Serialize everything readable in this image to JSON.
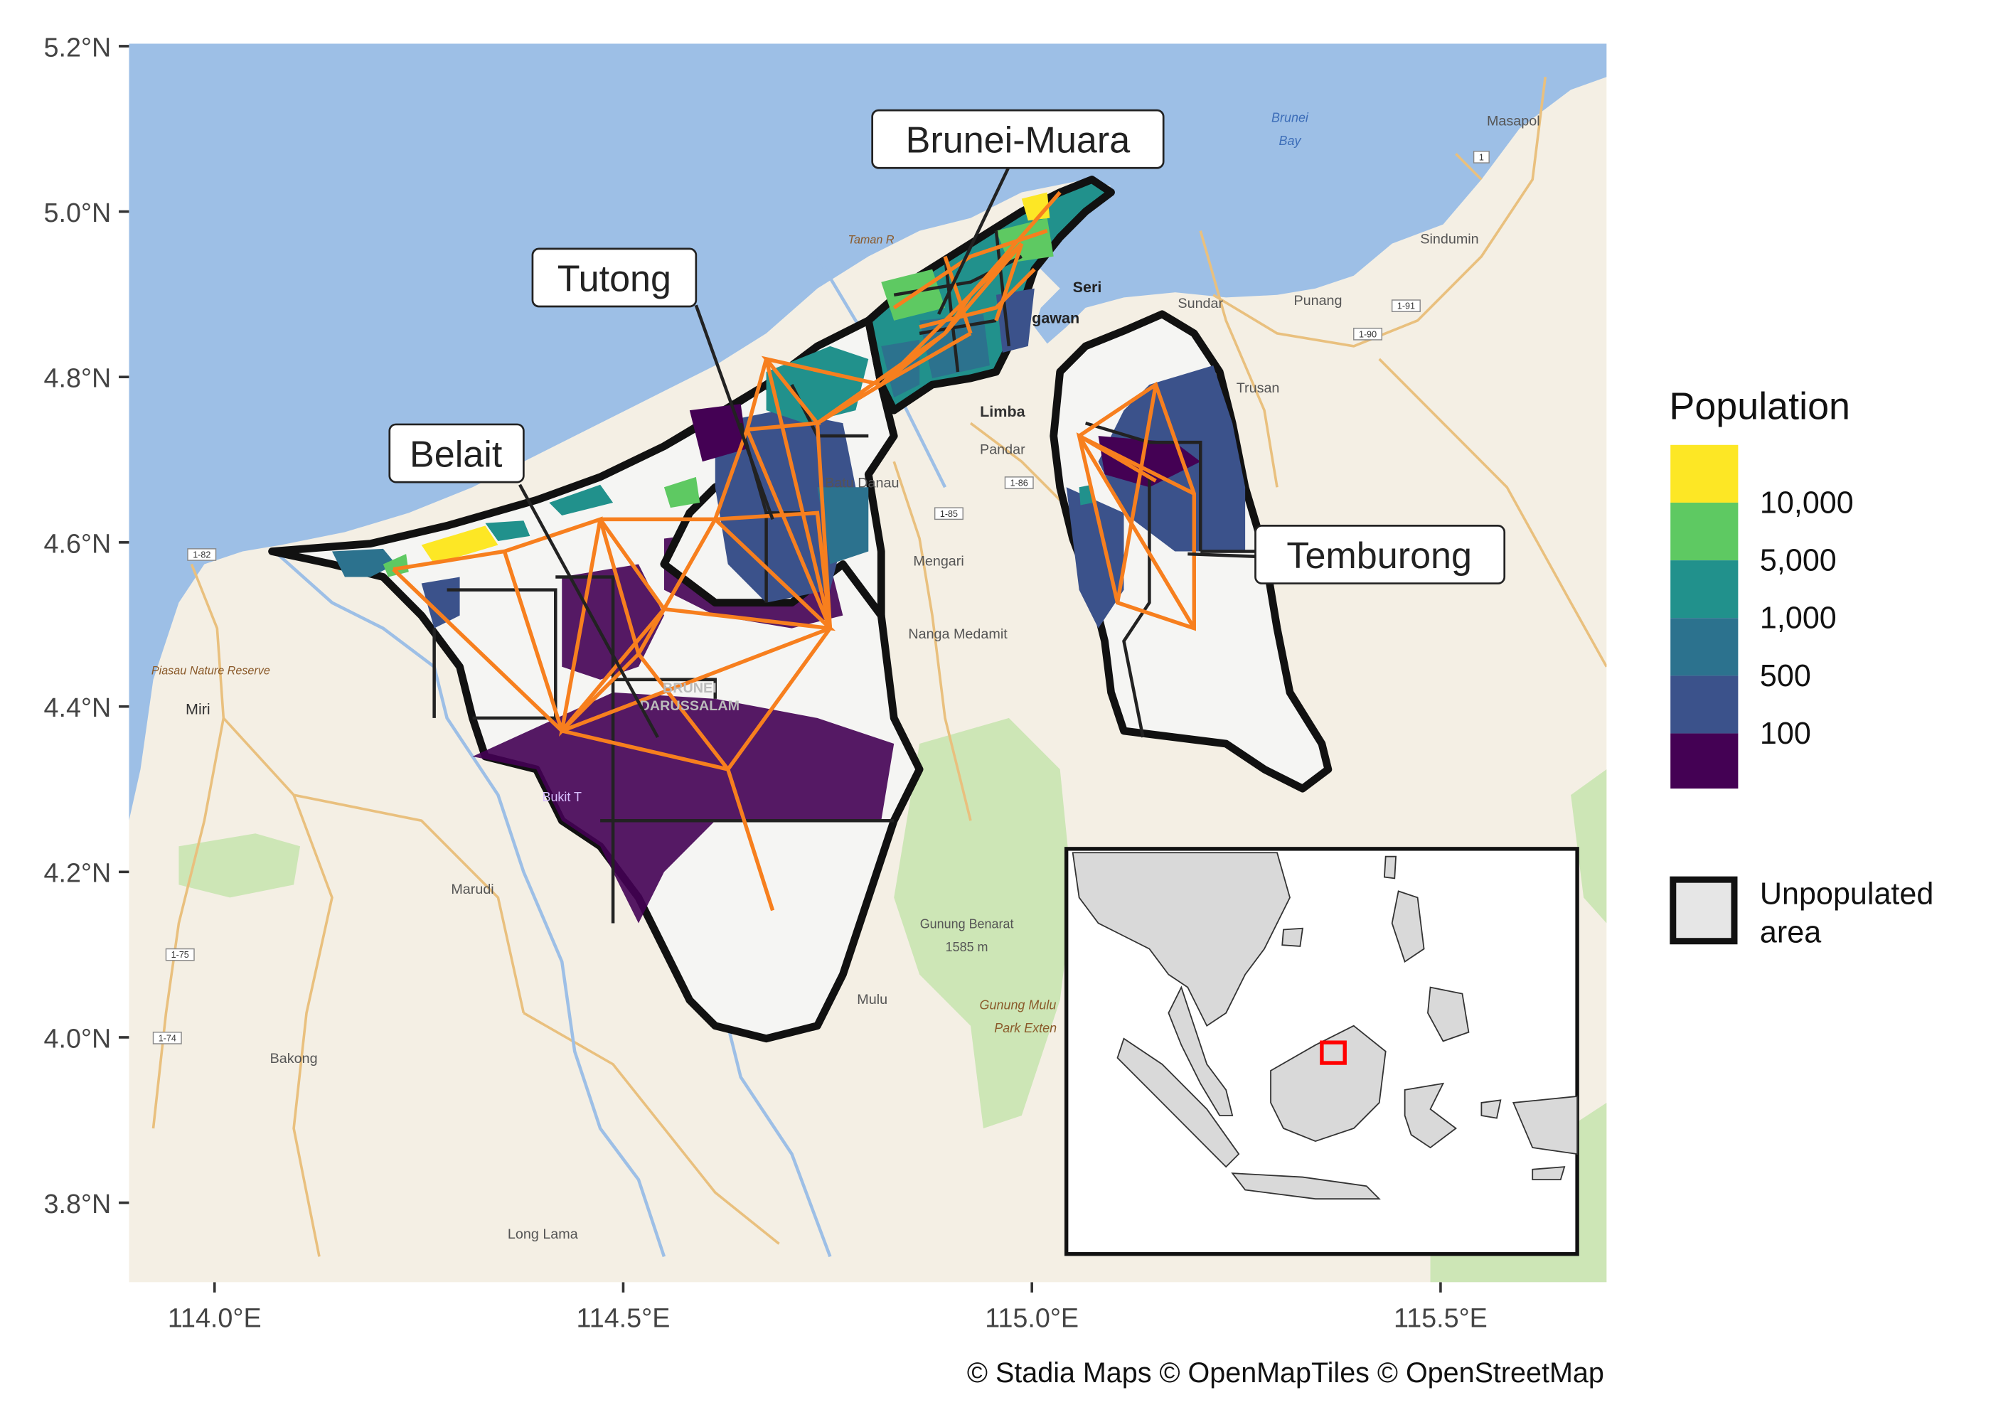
{
  "axes": {
    "y_ticks": [
      "5.2°N",
      "5.0°N",
      "4.8°N",
      "4.6°N",
      "4.4°N",
      "4.2°N",
      "4.0°N",
      "3.8°N"
    ],
    "x_ticks": [
      "114.0°E",
      "114.5°E",
      "115.0°E",
      "115.5°E"
    ]
  },
  "attribution": "© Stadia Maps © OpenMapTiles © OpenStreetMap",
  "district_labels": {
    "brunei_muara": "Brunei-Muara",
    "tutong": "Tutong",
    "belait": "Belait",
    "temburong": "Temburong"
  },
  "basemap_labels": {
    "brunei_bay": "Brunei",
    "brunei_bay2": "Bay",
    "masapol": "Masapol",
    "sindumin": "Sindumin",
    "sundar": "Sundar",
    "punang": "Punang",
    "trusan": "Trusan",
    "limbang": "Limba",
    "pandaruan": "Pandar",
    "bukit_danau": "Batu Danau",
    "mengari": "Mengari",
    "nanga": "Nanga Medamit",
    "miri": "Miri",
    "piasau": "Piasau Nature Reserve",
    "marudi": "Marudi",
    "bakong": "Bakong",
    "long_lama": "Long Lama",
    "mulu": "Mulu",
    "gunung_benarat": "Gunung Benarat",
    "benarat_elev": "1585 m",
    "gunung_mulu": "Gunung Mulu",
    "mulu_park": "Park Exten",
    "seri": "Seri",
    "lawan": "gawan",
    "taman": "Taman R",
    "brunei_faint": "BRUNEI",
    "darussalam_faint": "DARUSSALAM",
    "bukit": "Bukit T",
    "road_182": "1-82",
    "road_185": "1-85",
    "road_186": "1-86",
    "road_175": "1-75",
    "road_174": "1-74",
    "road_191": "1-91",
    "road_190": "1-90",
    "road_1": "1"
  },
  "legend": {
    "title": "Population",
    "bins": [
      {
        "label": "10,000",
        "color": "#fde725"
      },
      {
        "label": "5,000",
        "color": "#5ec962"
      },
      {
        "label": "1,000",
        "color": "#21918c"
      },
      {
        "label": "500",
        "color": "#2c728e"
      },
      {
        "label": "100",
        "color": "#3b528b"
      },
      {
        "label": "",
        "color": "#440154"
      }
    ],
    "unpopulated_line1": "Unpopulated",
    "unpopulated_line2": "area"
  },
  "colors": {
    "sea": "#9dbfe6",
    "land": "#f4efe4",
    "network": "#f77f1e",
    "border": "#111111",
    "inset_marker": "#ff0000"
  }
}
